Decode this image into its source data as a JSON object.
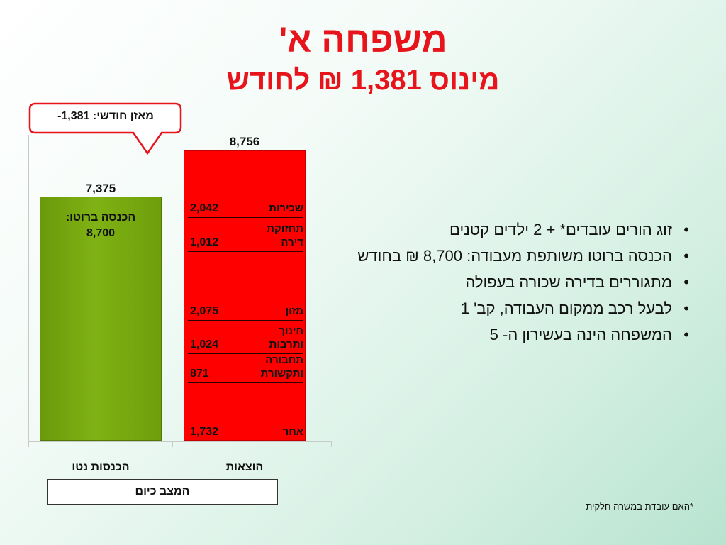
{
  "slide": {
    "title": "משפחה א'",
    "subtitle": "מינוס 1,381 ₪ לחודש"
  },
  "callout": {
    "text": "-1,381 :מאזן חודשי"
  },
  "chart_data": {
    "type": "bar",
    "stacked": true,
    "categories": [
      "הכנסות נטו",
      "הוצאות"
    ],
    "ylim": [
      0,
      8756
    ],
    "grid": false,
    "totals": [
      "7,375",
      "8,756"
    ],
    "income": {
      "category": "הכנסות נטו",
      "value": 7375,
      "label": "7,375",
      "inner_label": "הכנסה ברוטו:",
      "inner_value": "8,700",
      "color": "#74a80f"
    },
    "expenses": {
      "category": "הוצאות",
      "total": 8756,
      "label": "8,756",
      "color": "#ff0000",
      "segments": [
        {
          "name": "אחר",
          "value": 1732,
          "label": "1,732"
        },
        {
          "name": "תחבורה ותקשורת",
          "value": 871,
          "label": "871"
        },
        {
          "name": "חינוך ותרבות",
          "value": 1024,
          "label": "1,024"
        },
        {
          "name": "מזון",
          "value": 2075,
          "label": "2,075"
        },
        {
          "name": "תחזוקת דירה",
          "value": 1012,
          "label": "1,012"
        },
        {
          "name": "שכירות",
          "value": 2042,
          "label": "2,042"
        }
      ]
    }
  },
  "status_box": {
    "label": "המצב כיום"
  },
  "bullets": [
    "זוג הורים עובדים* + 2 ילדים קטנים",
    "הכנסה ברוטו משותפת מעבודה: 8,700 ₪ בחודש",
    "מתגוררים בדירה שכורה בעפולה",
    "לבעל רכב ממקום העבודה, קב' 1",
    "המשפחה הינה בעשירון ה- 5"
  ],
  "footnote": "*האם עובדת במשרה חלקית"
}
